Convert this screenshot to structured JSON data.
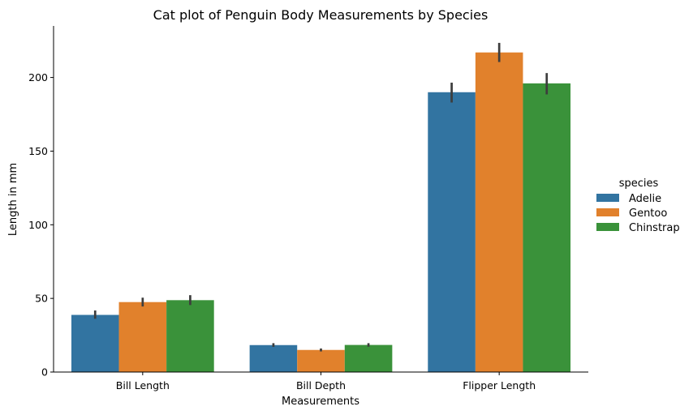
{
  "chart_data": {
    "type": "bar",
    "title": "Cat plot of Penguin Body Measurements by Species",
    "xlabel": "Measurements",
    "ylabel": "Length in mm",
    "categories": [
      "Bill Length",
      "Bill Depth",
      "Flipper Length"
    ],
    "ylim": [
      0,
      235
    ],
    "yticks": [
      0,
      50,
      100,
      150,
      200
    ],
    "grid": false,
    "legend": {
      "title": "species",
      "placement": "right"
    },
    "series": [
      {
        "name": "Adelie",
        "color": "#3274a1",
        "values": [
          38.8,
          18.3,
          190.0
        ],
        "err_low": [
          36.2,
          17.1,
          183.0
        ],
        "err_high": [
          41.8,
          19.6,
          196.5
        ]
      },
      {
        "name": "Gentoo",
        "color": "#e1812c",
        "values": [
          47.5,
          15.0,
          217.0
        ],
        "err_low": [
          44.5,
          14.0,
          210.5
        ],
        "err_high": [
          50.5,
          16.0,
          223.5
        ]
      },
      {
        "name": "Chinstrap",
        "color": "#3a923a",
        "values": [
          48.8,
          18.4,
          196.0
        ],
        "err_low": [
          45.5,
          17.2,
          188.5
        ],
        "err_high": [
          52.2,
          19.6,
          203.0
        ]
      }
    ]
  }
}
